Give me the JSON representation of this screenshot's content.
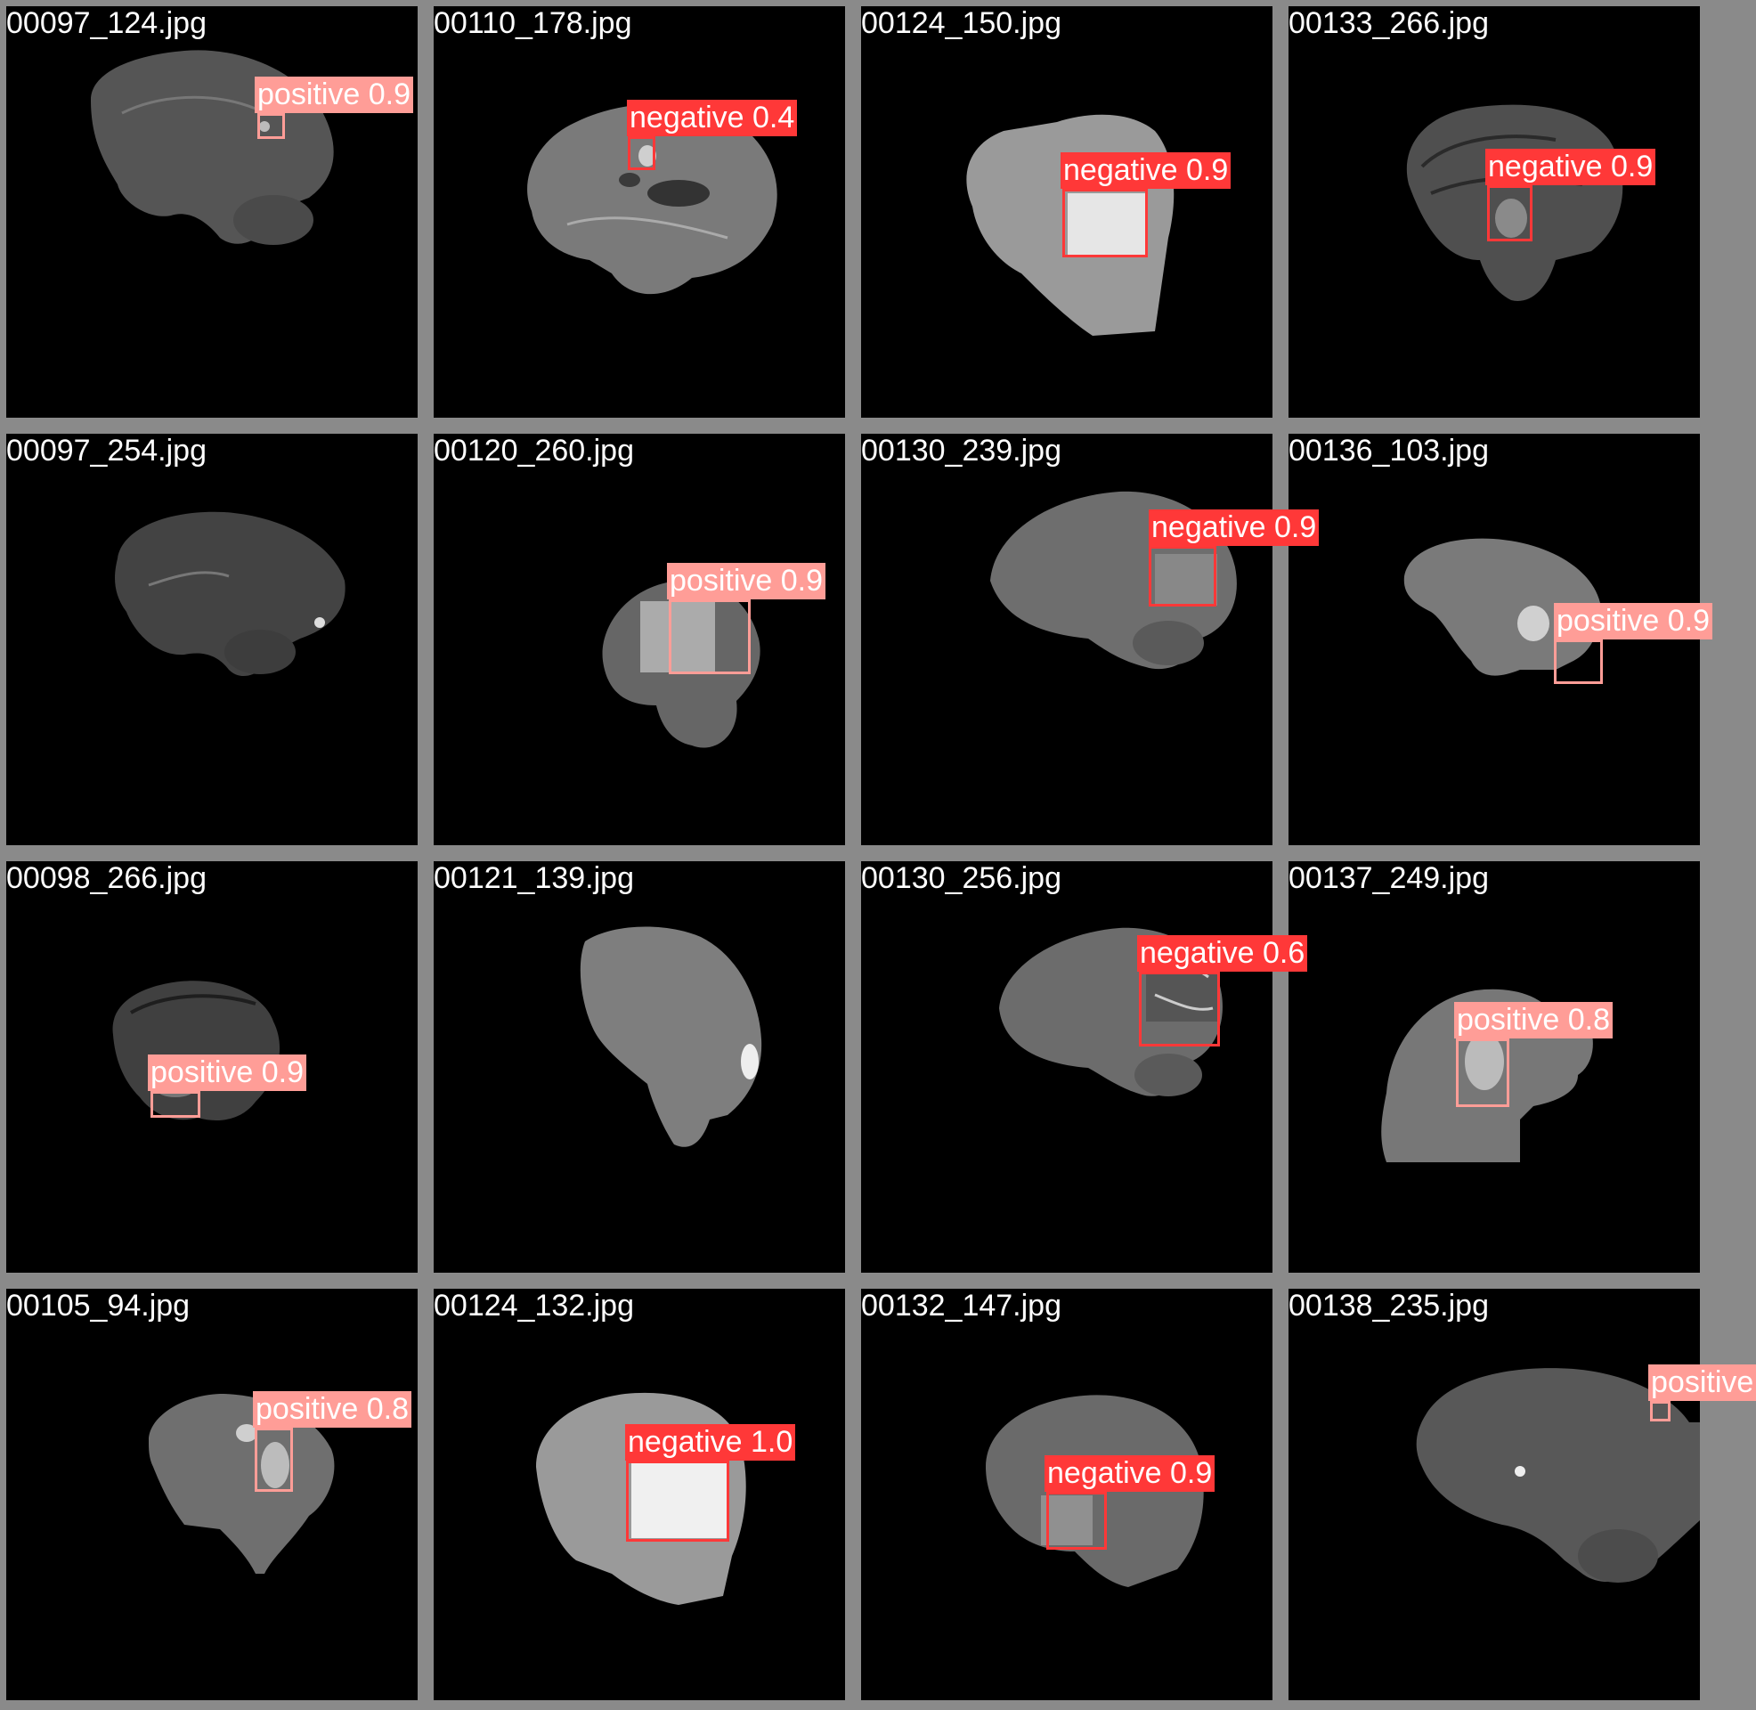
{
  "colors": {
    "positive": "#ff9d97",
    "negative": "#ff3838",
    "frame": "#8a8a8a",
    "scan_bg": "#000000"
  },
  "tiles": [
    {
      "filename": "00097_124.jpg",
      "detections": [
        {
          "cls": "positive",
          "label": "positive 0.9",
          "conf": 0.9
        }
      ]
    },
    {
      "filename": "00110_178.jpg",
      "detections": [
        {
          "cls": "negative",
          "label": "negative 0.4",
          "conf": 0.4
        }
      ]
    },
    {
      "filename": "00124_150.jpg",
      "detections": [
        {
          "cls": "negative",
          "label": "negative 0.9",
          "conf": 0.9
        }
      ]
    },
    {
      "filename": "00133_266.jpg",
      "detections": [
        {
          "cls": "negative",
          "label": "negative 0.9",
          "conf": 0.9
        }
      ]
    },
    {
      "filename": "00097_254.jpg",
      "detections": []
    },
    {
      "filename": "00120_260.jpg",
      "detections": [
        {
          "cls": "positive",
          "label": "positive 0.9",
          "conf": 0.9
        }
      ]
    },
    {
      "filename": "00130_239.jpg",
      "detections": [
        {
          "cls": "negative",
          "label": "negative 0.9",
          "conf": 0.9
        }
      ]
    },
    {
      "filename": "00136_103.jpg",
      "detections": [
        {
          "cls": "positive",
          "label": "positive 0.9",
          "conf": 0.9
        }
      ]
    },
    {
      "filename": "00098_266.jpg",
      "detections": [
        {
          "cls": "positive",
          "label": "positive 0.9",
          "conf": 0.9
        }
      ]
    },
    {
      "filename": "00121_139.jpg",
      "detections": []
    },
    {
      "filename": "00130_256.jpg",
      "detections": [
        {
          "cls": "negative",
          "label": "negative 0.6",
          "conf": 0.6
        }
      ]
    },
    {
      "filename": "00137_249.jpg",
      "detections": [
        {
          "cls": "positive",
          "label": "positive 0.8",
          "conf": 0.8
        }
      ]
    },
    {
      "filename": "00105_94.jpg",
      "detections": [
        {
          "cls": "positive",
          "label": "positive 0.8",
          "conf": 0.8
        }
      ]
    },
    {
      "filename": "00124_132.jpg",
      "detections": [
        {
          "cls": "negative",
          "label": "negative 1.0",
          "conf": 1.0
        }
      ]
    },
    {
      "filename": "00132_147.jpg",
      "detections": [
        {
          "cls": "negative",
          "label": "negative 0.9",
          "conf": 0.9
        }
      ]
    },
    {
      "filename": "00138_235.jpg",
      "detections": [
        {
          "cls": "positive",
          "label": "positive",
          "conf": null
        }
      ]
    }
  ]
}
